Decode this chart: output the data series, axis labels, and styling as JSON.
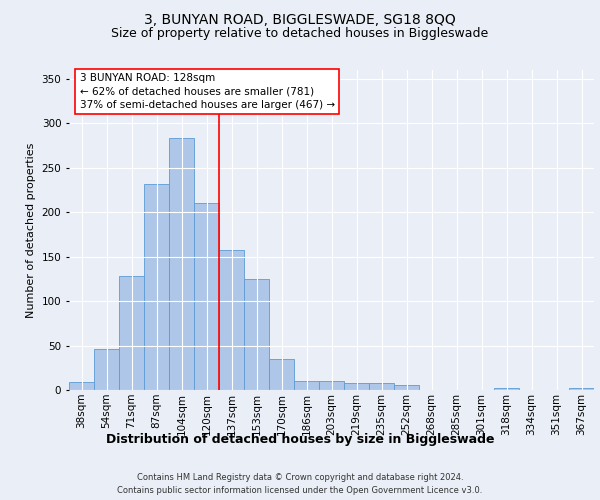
{
  "title1": "3, BUNYAN ROAD, BIGGLESWADE, SG18 8QQ",
  "title2": "Size of property relative to detached houses in Biggleswade",
  "xlabel": "Distribution of detached houses by size in Biggleswade",
  "ylabel": "Number of detached properties",
  "categories": [
    "38sqm",
    "54sqm",
    "71sqm",
    "87sqm",
    "104sqm",
    "120sqm",
    "137sqm",
    "153sqm",
    "170sqm",
    "186sqm",
    "203sqm",
    "219sqm",
    "235sqm",
    "252sqm",
    "268sqm",
    "285sqm",
    "301sqm",
    "318sqm",
    "334sqm",
    "351sqm",
    "367sqm"
  ],
  "values": [
    9,
    46,
    128,
    232,
    283,
    210,
    157,
    125,
    35,
    10,
    10,
    8,
    8,
    6,
    0,
    0,
    0,
    2,
    0,
    0,
    2
  ],
  "bar_color": "#aec6e8",
  "bar_edgecolor": "#5b9bd5",
  "marker_label": "3 BUNYAN ROAD: 128sqm",
  "annotation_line1": "← 62% of detached houses are smaller (781)",
  "annotation_line2": "37% of semi-detached houses are larger (467) →",
  "vline_index": 5.5,
  "footer1": "Contains HM Land Registry data © Crown copyright and database right 2024.",
  "footer2": "Contains public sector information licensed under the Open Government Licence v3.0.",
  "ylim": [
    0,
    360
  ],
  "yticks": [
    0,
    50,
    100,
    150,
    200,
    250,
    300,
    350
  ],
  "bg_color": "#eaeff7",
  "plot_bg": "#eaeff7",
  "grid_color": "#ffffff",
  "title1_fontsize": 10,
  "title2_fontsize": 9,
  "ylabel_fontsize": 8,
  "xlabel_fontsize": 9,
  "tick_fontsize": 7.5,
  "footer_fontsize": 6,
  "ann_fontsize": 7.5
}
